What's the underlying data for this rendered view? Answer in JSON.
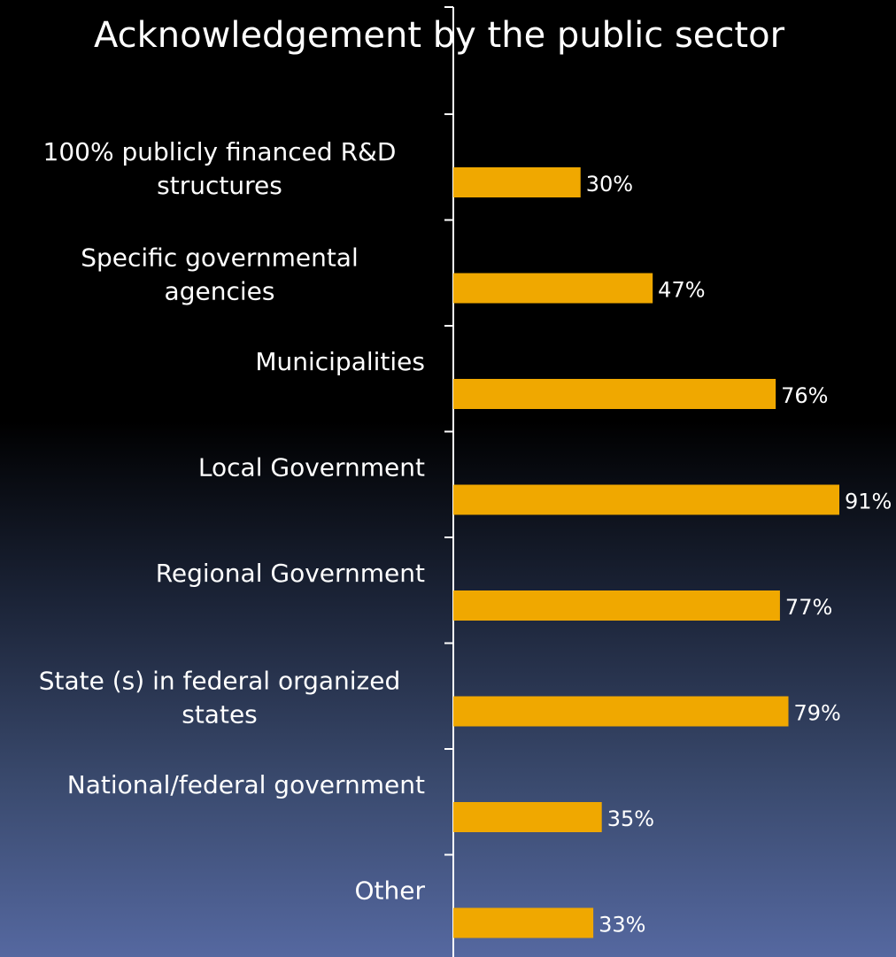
{
  "chart_data": {
    "type": "bar",
    "orientation": "horizontal",
    "title": "Acknowledgement by the public sector",
    "categories": [
      [
        "100% publicly financed R&D",
        "structures"
      ],
      [
        "Specific governmental",
        "agencies"
      ],
      [
        "Municipalities"
      ],
      [
        "Local Government"
      ],
      [
        "Regional Government"
      ],
      [
        "State (s) in federal organized",
        "states"
      ],
      [
        "National/federal government"
      ],
      [
        "Other"
      ]
    ],
    "values": [
      30,
      47,
      76,
      91,
      77,
      79,
      35,
      33
    ],
    "value_labels": [
      "30%",
      "47%",
      "76%",
      "91%",
      "77%",
      "79%",
      "35%",
      "33%"
    ],
    "xlim": [
      0,
      91
    ],
    "colors": {
      "bar": "#f0a800",
      "text": "#ffffff",
      "axis": "#ffffff"
    },
    "grid": false,
    "legend": "none"
  }
}
